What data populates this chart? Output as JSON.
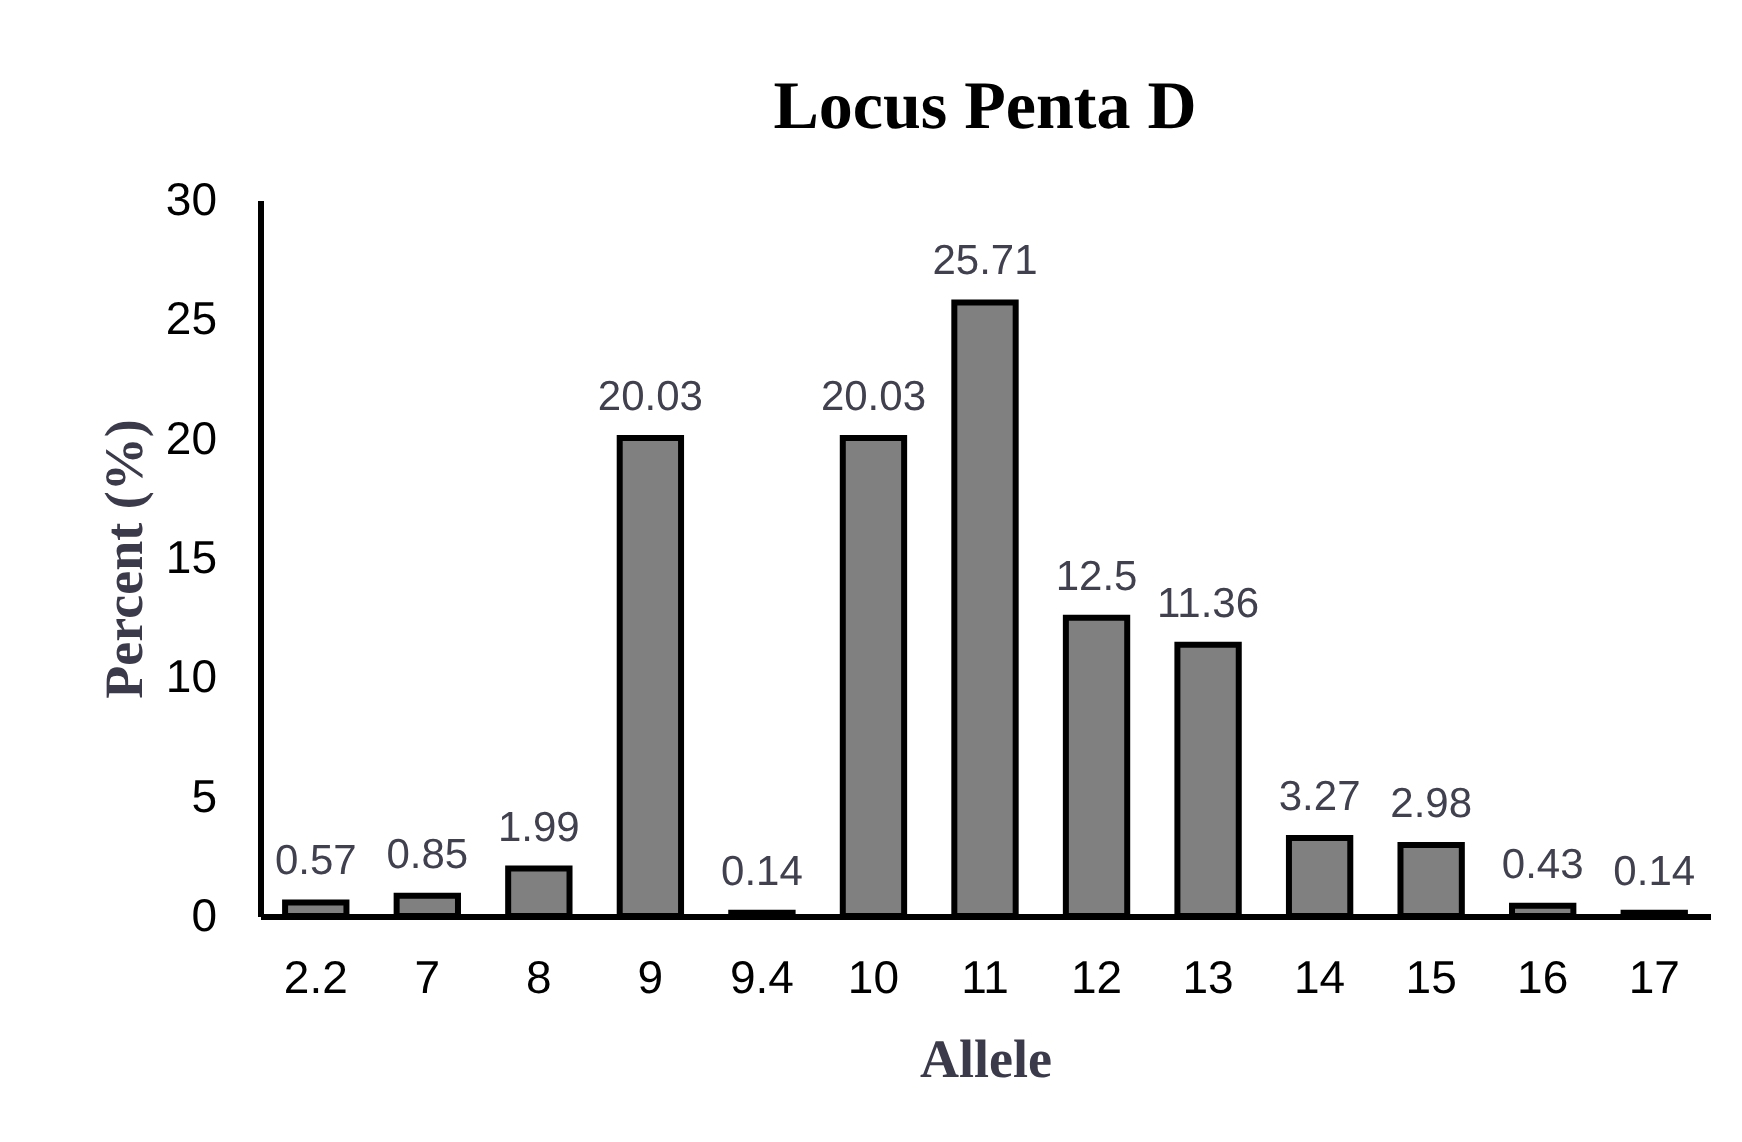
{
  "chart_data": {
    "type": "bar",
    "title": "Locus Penta D",
    "xlabel": "Allele",
    "ylabel": "Percent (%)",
    "categories": [
      "2.2",
      "7",
      "8",
      "9",
      "9.4",
      "10",
      "11",
      "12",
      "13",
      "14",
      "15",
      "16",
      "17"
    ],
    "values": [
      0.57,
      0.85,
      1.99,
      20.03,
      0.14,
      20.03,
      25.71,
      12.5,
      11.36,
      3.27,
      2.98,
      0.43,
      0.14
    ],
    "color": "#808080",
    "ylim": [
      0,
      30
    ],
    "yticks": [
      0,
      5,
      10,
      15,
      20,
      25,
      30
    ],
    "data_labels": true
  }
}
